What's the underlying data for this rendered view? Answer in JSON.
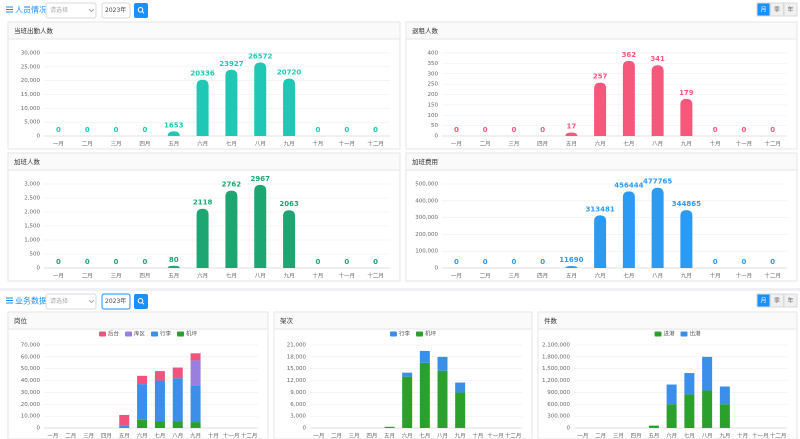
{
  "sections": [
    {
      "title": "人员情况",
      "select_placeholder": "请选择",
      "year": "2023年",
      "toggles": [
        "月",
        "季",
        "年"
      ]
    },
    {
      "title": "业务数据",
      "select_placeholder": "请选择",
      "year": "2023年",
      "toggles": [
        "月",
        "季",
        "年"
      ]
    }
  ],
  "chart_data": [
    {
      "type": "bar",
      "title": "当班出勤人数",
      "color": "#1fc7b4",
      "grid": true,
      "categories": [
        "一月",
        "二月",
        "三月",
        "四月",
        "五月",
        "六月",
        "七月",
        "八月",
        "九月",
        "十月",
        "十一月",
        "十二月"
      ],
      "values": [
        0,
        0,
        0,
        0,
        1653,
        20336,
        23927,
        26572,
        20720,
        0,
        0,
        0
      ],
      "ylim": [
        0,
        30000
      ],
      "yticks": [
        0,
        {
          "value": 5000,
          "label": "5,000"
        },
        {
          "value": 10000,
          "label": "10,000"
        },
        {
          "value": 15000,
          "label": "15,000"
        },
        {
          "value": 20000,
          "label": "20,000"
        },
        {
          "value": 25000,
          "label": "25,000"
        },
        {
          "value": 30000,
          "label": "30,000"
        }
      ]
    },
    {
      "type": "bar",
      "title": "退租人数",
      "color": "#f5587b",
      "grid": true,
      "categories": [
        "一月",
        "二月",
        "三月",
        "四月",
        "五月",
        "六月",
        "七月",
        "八月",
        "九月",
        "十月",
        "十一月",
        "十二月"
      ],
      "values": [
        0,
        0,
        0,
        0,
        17,
        257,
        362,
        341,
        179,
        0,
        0,
        0
      ],
      "ylim": [
        0,
        400
      ],
      "yticks": [
        0,
        50,
        100,
        150,
        200,
        250,
        300,
        350,
        400
      ]
    },
    {
      "type": "bar",
      "title": "加班人数",
      "color": "#1ea672",
      "grid": true,
      "categories": [
        "一月",
        "二月",
        "三月",
        "四月",
        "五月",
        "六月",
        "七月",
        "八月",
        "九月",
        "十月",
        "十一月",
        "十二月"
      ],
      "values": [
        0,
        0,
        0,
        0,
        80,
        2118,
        2762,
        2967,
        2063,
        0,
        0,
        0
      ],
      "ylim": [
        0,
        3000
      ],
      "yticks": [
        0,
        500,
        {
          "value": 1000,
          "label": "1,000"
        },
        {
          "value": 1500,
          "label": "1,500"
        },
        {
          "value": 2000,
          "label": "2,000"
        },
        {
          "value": 2500,
          "label": "2,500"
        },
        {
          "value": 3000,
          "label": "3,000"
        }
      ]
    },
    {
      "type": "bar",
      "title": "加班费用",
      "color": "#2b9af3",
      "grid": true,
      "categories": [
        "一月",
        "二月",
        "三月",
        "四月",
        "五月",
        "六月",
        "七月",
        "八月",
        "九月",
        "十月",
        "十一月",
        "十二月"
      ],
      "values": [
        0,
        0,
        0,
        0,
        11690,
        313481,
        456444,
        477765,
        344865,
        0,
        0,
        0
      ],
      "ylim": [
        0,
        500000
      ],
      "yticks": [
        0,
        {
          "value": 100000,
          "label": "100,000"
        },
        {
          "value": 200000,
          "label": "200,000"
        },
        {
          "value": 300000,
          "label": "300,000"
        },
        {
          "value": 400000,
          "label": "400,000"
        },
        {
          "value": 500000,
          "label": "500,000"
        }
      ]
    },
    {
      "type": "stacked_bar",
      "title": "岗位",
      "grid": true,
      "categories": [
        "一月",
        "二月",
        "三月",
        "四月",
        "五月",
        "六月",
        "七月",
        "八月",
        "九月",
        "十月",
        "十一月",
        "十二月"
      ],
      "series": [
        {
          "name": "机坪",
          "color": "#2ca02c",
          "values": [
            0,
            0,
            0,
            0,
            0,
            7000,
            5500,
            5500,
            5000,
            0,
            0,
            0
          ]
        },
        {
          "name": "行李",
          "color": "#3b8fe8",
          "values": [
            0,
            0,
            0,
            0,
            2000,
            30000,
            34500,
            36500,
            31000,
            0,
            0,
            0
          ]
        },
        {
          "name": "库区",
          "color": "#9b7fe0",
          "values": [
            0,
            0,
            0,
            0,
            0,
            0,
            0,
            0,
            21000,
            0,
            0,
            0
          ]
        },
        {
          "name": "后台",
          "color": "#f0537e",
          "values": [
            0,
            0,
            0,
            0,
            9000,
            7000,
            8000,
            9000,
            6000,
            0,
            0,
            0
          ]
        }
      ],
      "legend_order": [
        "后台",
        "库区",
        "行李",
        "机坪"
      ],
      "ylim": [
        0,
        70000
      ],
      "yticks": [
        0,
        {
          "value": 10000,
          "label": "10,000"
        },
        {
          "value": 20000,
          "label": "20,000"
        },
        {
          "value": 30000,
          "label": "30,000"
        },
        {
          "value": 40000,
          "label": "40,000"
        },
        {
          "value": 50000,
          "label": "50,000"
        },
        {
          "value": 60000,
          "label": "60,000"
        },
        {
          "value": 70000,
          "label": "70,000"
        }
      ]
    },
    {
      "type": "stacked_bar",
      "title": "架次",
      "grid": true,
      "categories": [
        "一月",
        "二月",
        "三月",
        "四月",
        "五月",
        "六月",
        "七月",
        "八月",
        "九月",
        "十月",
        "十一月",
        "十二月"
      ],
      "series": [
        {
          "name": "机坪",
          "color": "#2ca02c",
          "values": [
            0,
            0,
            0,
            0,
            300,
            13000,
            16500,
            14500,
            9000,
            0,
            0,
            0
          ]
        },
        {
          "name": "行李",
          "color": "#3b8fe8",
          "values": [
            0,
            0,
            0,
            0,
            0,
            1000,
            3000,
            3500,
            2500,
            0,
            0,
            0
          ]
        }
      ],
      "legend_order": [
        "行李",
        "机坪"
      ],
      "ylim": [
        0,
        21000
      ],
      "yticks": [
        0,
        {
          "value": 3000,
          "label": "3,000"
        },
        {
          "value": 6000,
          "label": "6,000"
        },
        {
          "value": 9000,
          "label": "9,000"
        },
        {
          "value": 12000,
          "label": "12,000"
        },
        {
          "value": 15000,
          "label": "15,000"
        },
        {
          "value": 18000,
          "label": "18,000"
        },
        {
          "value": 21000,
          "label": "21,000"
        }
      ]
    },
    {
      "type": "stacked_bar",
      "title": "件数",
      "grid": true,
      "categories": [
        "一月",
        "二月",
        "三月",
        "四月",
        "五月",
        "六月",
        "七月",
        "八月",
        "九月",
        "十月",
        "十一月",
        "十二月"
      ],
      "series": [
        {
          "name": "进港",
          "color": "#2ca02c",
          "values": [
            0,
            0,
            0,
            0,
            60000,
            600000,
            850000,
            950000,
            600000,
            0,
            0,
            0
          ]
        },
        {
          "name": "出港",
          "color": "#3b8fe8",
          "values": [
            0,
            0,
            0,
            0,
            0,
            500000,
            540000,
            850000,
            450000,
            0,
            0,
            0
          ]
        }
      ],
      "legend_order": [
        "进港",
        "出港"
      ],
      "ylim": [
        0,
        2100000
      ],
      "yticks": [
        0,
        {
          "value": 300000,
          "label": "300,000"
        },
        {
          "value": 600000,
          "label": "600,000"
        },
        {
          "value": 900000,
          "label": "900,000"
        },
        {
          "value": 1200000,
          "label": "1,200,000"
        },
        {
          "value": 1500000,
          "label": "1,500,000"
        },
        {
          "value": 1800000,
          "label": "1,800,000"
        },
        {
          "value": 2100000,
          "label": "2,100,000"
        }
      ]
    }
  ]
}
